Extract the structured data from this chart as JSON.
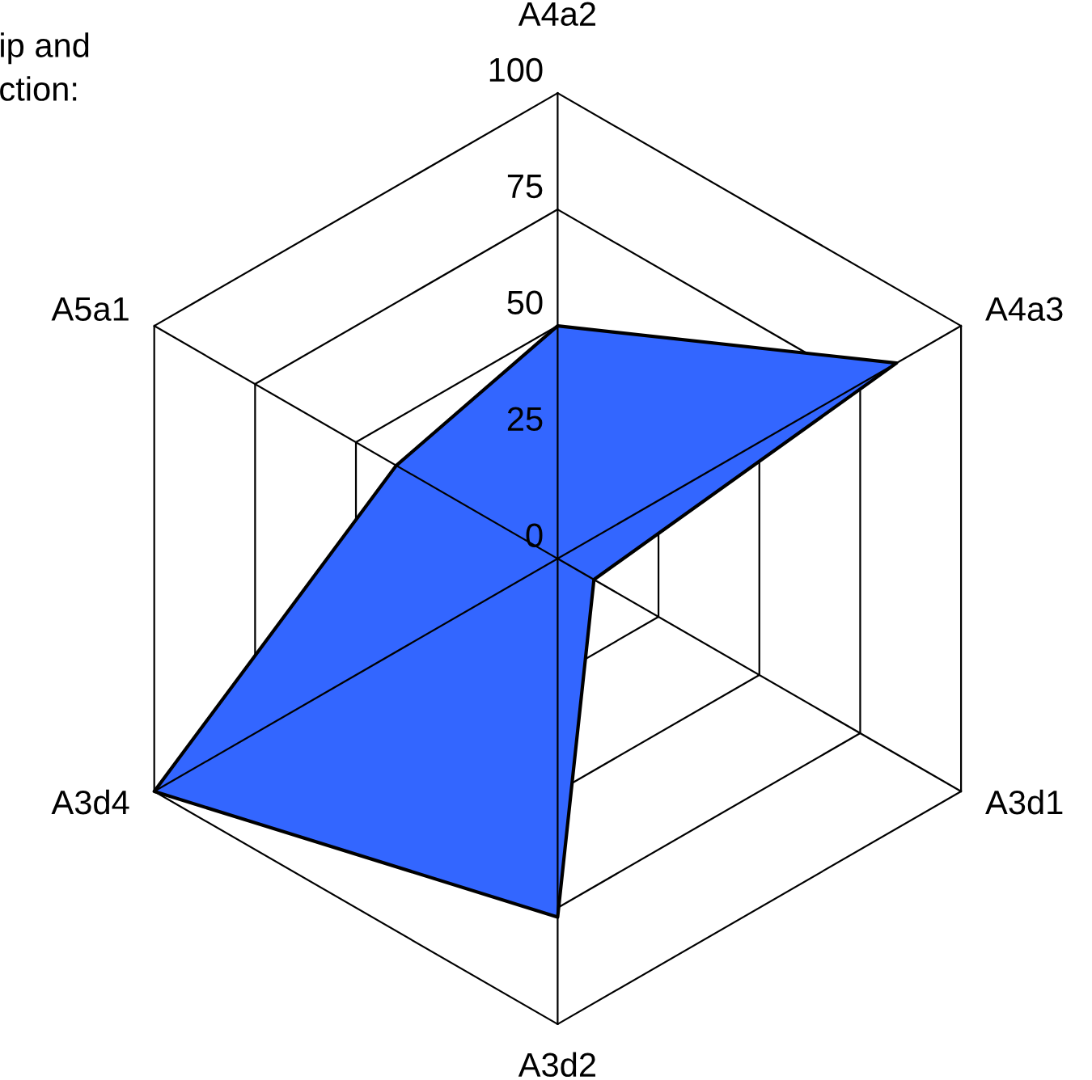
{
  "chart_data": {
    "type": "radar",
    "categories": [
      "A4a2",
      "A4a3",
      "A3d1",
      "A3d2",
      "A3d4",
      "A5a1"
    ],
    "series": [
      {
        "color": "#3366ff",
        "values": [
          50,
          84,
          9,
          77,
          100,
          40
        ]
      }
    ],
    "ylim": [
      0,
      100
    ],
    "yticks": [
      0,
      25,
      50,
      75,
      100
    ],
    "grid": true,
    "legend": false,
    "annotations": [
      "ip and\nction:"
    ]
  }
}
